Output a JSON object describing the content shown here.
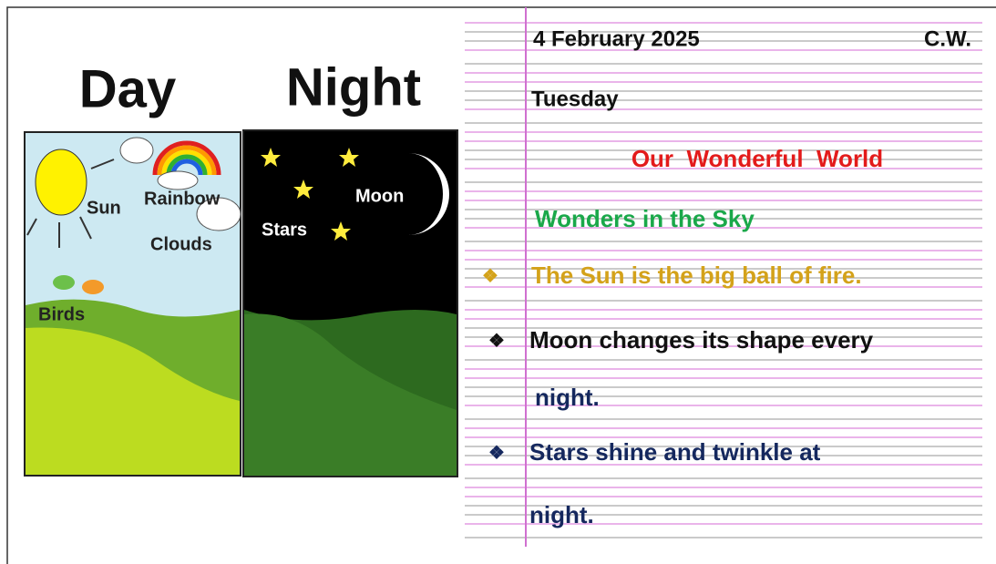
{
  "illustration": {
    "titles": [
      "Day",
      "Night"
    ],
    "day_labels": [
      "Sun",
      "Rainbow",
      "Clouds",
      "Birds"
    ],
    "night_labels": [
      "Moon",
      "Stars"
    ]
  },
  "notes": {
    "date": "4 February 2025",
    "tag": "C.W.",
    "day": "Tuesday",
    "heading": "Our  Wonderful  World",
    "subheading": "Wonders in the Sky",
    "bullet": "❖",
    "points": [
      {
        "lines": [
          "The Sun is the big ball of fire."
        ]
      },
      {
        "lines": [
          "Moon changes its shape every",
          "night."
        ]
      },
      {
        "lines": [
          "Stars shine and twinkle at",
          "night."
        ]
      }
    ]
  }
}
